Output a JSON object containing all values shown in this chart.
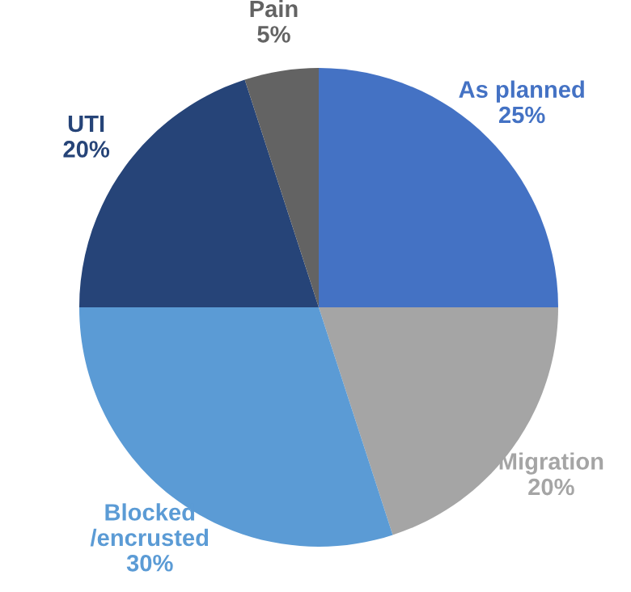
{
  "chart_data": {
    "type": "pie",
    "categories": [
      "As planned",
      "Migration",
      "Blocked\n/encrusted",
      "UTI",
      "Pain"
    ],
    "values": [
      25,
      20,
      30,
      20,
      5
    ],
    "colors": [
      "#4472c4",
      "#a5a5a5",
      "#5b9bd5",
      "#264478",
      "#636363"
    ],
    "value_labels": [
      "25%",
      "20%",
      "30%",
      "20%",
      "5%"
    ],
    "legend": false
  }
}
